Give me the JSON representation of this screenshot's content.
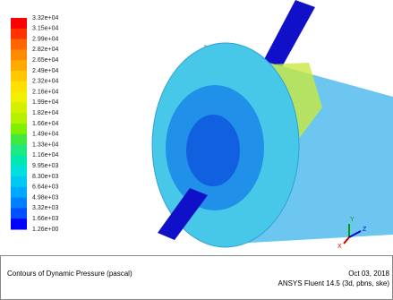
{
  "legend": {
    "labels": [
      "3.32e+04",
      "3.15e+04",
      "2.99e+04",
      "2.82e+04",
      "2.65e+04",
      "2.49e+04",
      "2.32e+04",
      "2.16e+04",
      "1.99e+04",
      "1.82e+04",
      "1.66e+04",
      "1.49e+04",
      "1.33e+04",
      "1.16e+04",
      "9.95e+03",
      "8.30e+03",
      "6.64e+03",
      "4.98e+03",
      "3.32e+03",
      "1.66e+03",
      "1.26e+00"
    ],
    "colors": [
      "#ff0000",
      "#ff3300",
      "#ff6600",
      "#ff8c00",
      "#ffaa00",
      "#ffc800",
      "#ffe000",
      "#f0f000",
      "#d2f000",
      "#b4f000",
      "#80f000",
      "#40e840",
      "#20e880",
      "#00e8b0",
      "#00e0e0",
      "#00c8f0",
      "#00a8ff",
      "#0080ff",
      "#0050ff",
      "#0000ff"
    ]
  },
  "axes": {
    "x": "X",
    "y": "Y",
    "z": "Z"
  },
  "caption": {
    "title": "Contours of Dynamic Pressure (pascal)",
    "date": "Oct 03, 2018",
    "software": "ANSYS Fluent 14.5 (3d, pbns, ske)"
  }
}
